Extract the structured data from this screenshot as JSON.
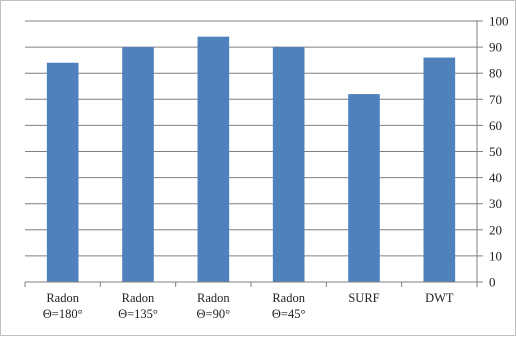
{
  "chart_data": {
    "type": "bar",
    "categories": [
      [
        "Radon",
        "Θ=180°"
      ],
      [
        "Radon",
        "Θ=135°"
      ],
      [
        "Radon",
        "Θ=90°"
      ],
      [
        "Radon",
        "Θ=45°"
      ],
      [
        "SURF"
      ],
      [
        "DWT"
      ]
    ],
    "values": [
      84,
      90,
      94,
      90,
      72,
      86
    ],
    "ylim": [
      0,
      100
    ],
    "yticks": [
      0,
      10,
      20,
      30,
      40,
      50,
      60,
      70,
      80,
      90,
      100
    ],
    "y_axis_side": "right",
    "grid": true,
    "legend": "none",
    "title": "",
    "xlabel": "",
    "ylabel": "",
    "colors": {
      "bar": "#4f81bd",
      "grid": "#7f7f7f",
      "text": "#222222"
    }
  }
}
